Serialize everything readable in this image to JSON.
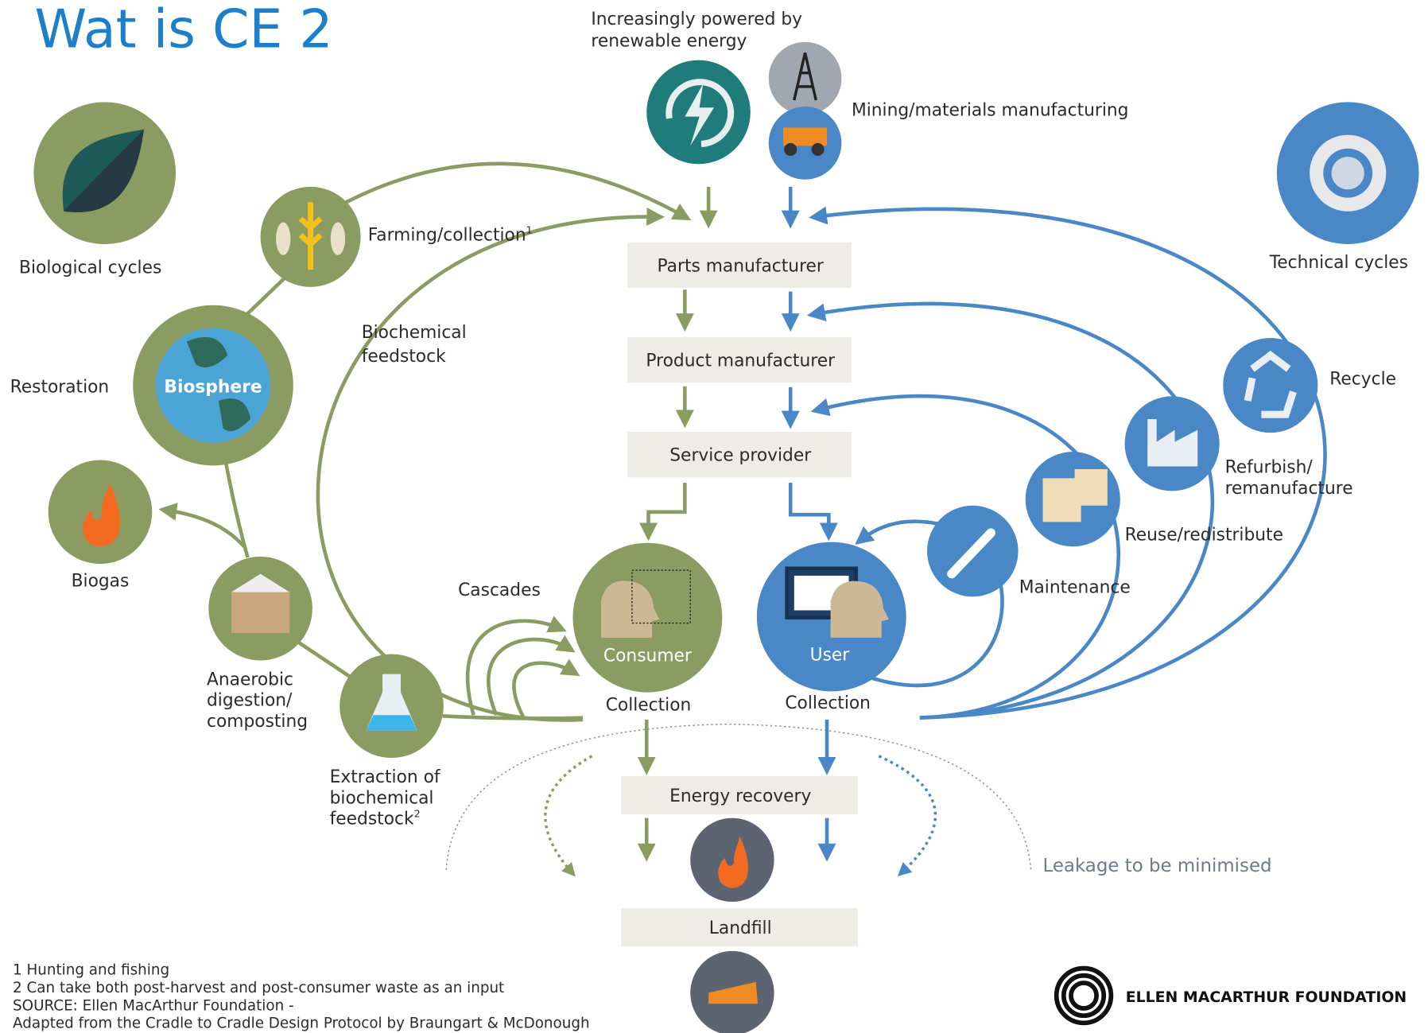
{
  "header": {
    "title": "Wat is CE 2"
  },
  "energy": {
    "lines": [
      "Increasingly powered by",
      "renewable energy"
    ]
  },
  "mining": "Mining/materials manufacturing",
  "biological": {
    "label": "Biological cycles",
    "farming": {
      "label": "Farming/collection",
      "note": "1"
    },
    "feedstock": [
      "Biochemical",
      "feedstock"
    ],
    "restoration": "Restoration",
    "biosphere": "Biosphere",
    "biogas": "Biogas",
    "digestion": [
      "Anaerobic",
      "digestion/",
      "composting"
    ],
    "extraction": {
      "lines": [
        "Extraction of",
        "biochemical",
        "feedstock"
      ],
      "note": "2"
    },
    "cascades": "Cascades",
    "consumer": "Consumer",
    "collection": "Collection"
  },
  "technical": {
    "label": "Technical cycles",
    "recycle": "Recycle",
    "refurbish": [
      "Refurbish/",
      "remanufacture"
    ],
    "reuse": "Reuse/redistribute",
    "maintenance": "Maintenance",
    "user": "User",
    "collection": "Collection"
  },
  "chain": [
    "Parts manufacturer",
    "Product manufacturer",
    "Service provider",
    "Energy recovery",
    "Landfill"
  ],
  "leakage": "Leakage to be minimised",
  "footnotes": [
    "1  Hunting and fishing",
    "2 Can take both post-harvest and post-consumer waste as an input",
    "SOURCE: Ellen MacArthur Foundation -",
    "Adapted from the Cradle to Cradle Design Protocol by Braungart & McDonough"
  ],
  "logo": "ELLEN MACARTHUR FOUNDATION"
}
